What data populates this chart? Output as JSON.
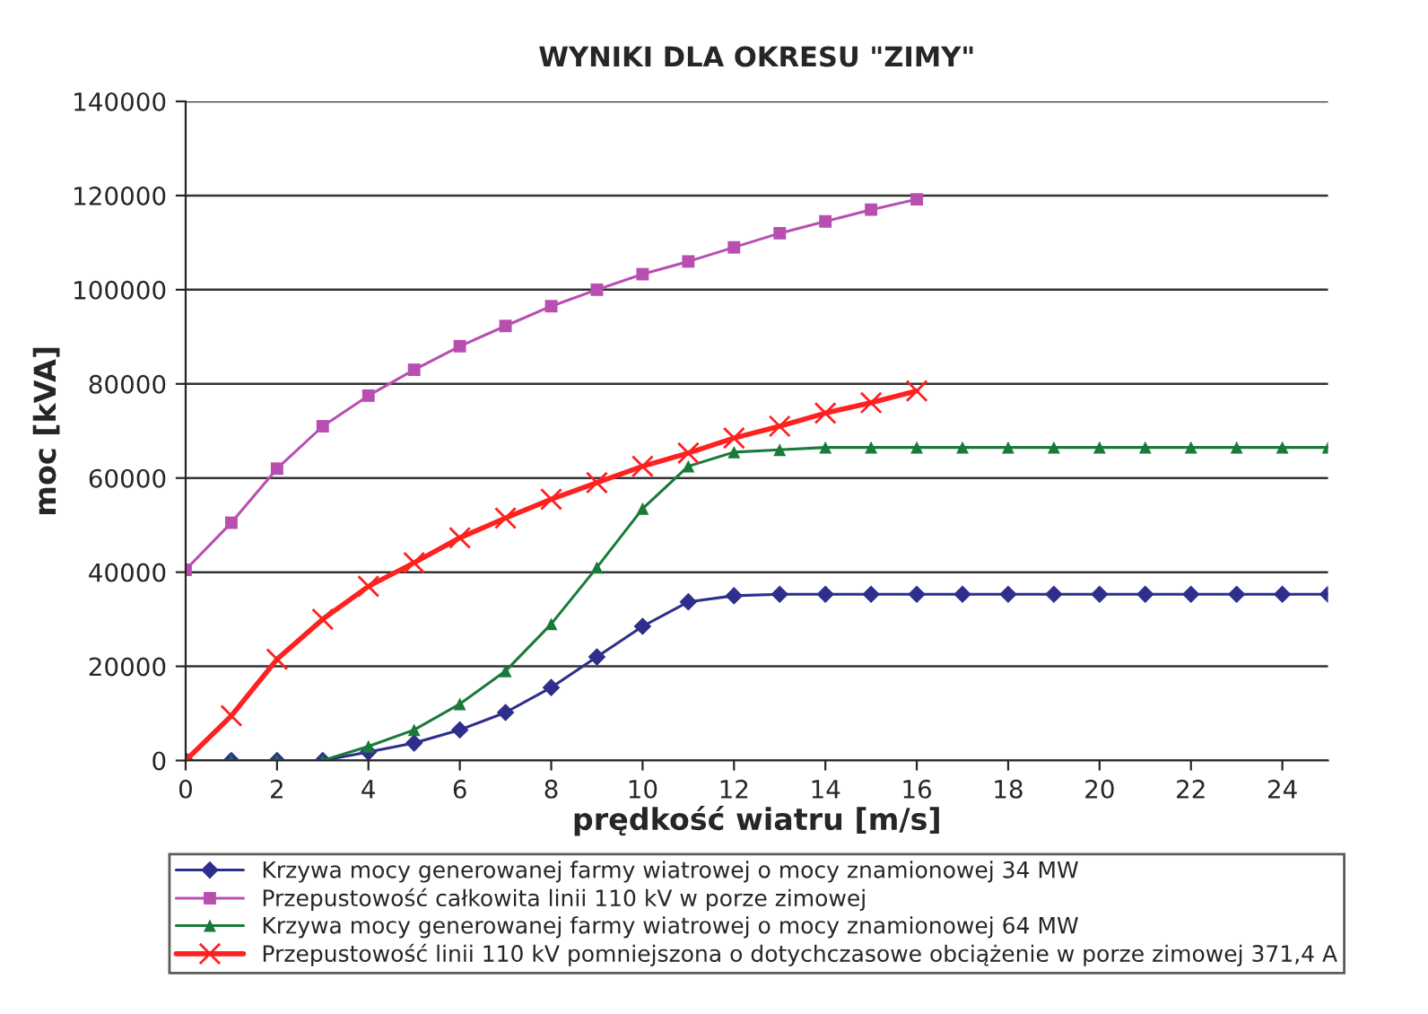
{
  "chart_data": {
    "type": "line",
    "title": "WYNIKI DLA OKRESU \"ZIMY\"",
    "xlabel": "prędkość wiatru [m/s]",
    "ylabel": "moc [kVA]",
    "series": [
      {
        "name": "Krzywa mocy generowanej farmy wiatrowej o mocy znamionowej 34 MW",
        "color": "#2e2e8c",
        "marker": "diamond",
        "x": [
          0,
          1,
          2,
          3,
          4,
          5,
          6,
          7,
          8,
          9,
          10,
          11,
          12,
          13,
          14,
          15,
          16,
          17,
          18,
          19,
          20,
          21,
          22,
          23,
          24,
          25
        ],
        "values": [
          0,
          0,
          0,
          0,
          1800,
          3700,
          6500,
          10200,
          15500,
          22000,
          28500,
          33700,
          35000,
          35300,
          35300,
          35300,
          35300,
          35300,
          35300,
          35300,
          35300,
          35300,
          35300,
          35300,
          35300,
          35300
        ]
      },
      {
        "name": "Przepustowość całkowita linii 110 kV w porze zimowej",
        "color": "#b84fb0",
        "marker": "square",
        "x": [
          0,
          1,
          2,
          3,
          4,
          5,
          6,
          7,
          8,
          9,
          10,
          11,
          12,
          13,
          14,
          15,
          16
        ],
        "values": [
          40500,
          50500,
          62000,
          71000,
          77500,
          83000,
          88000,
          92300,
          96500,
          100000,
          103300,
          106000,
          109000,
          112000,
          114500,
          117000,
          119200
        ]
      },
      {
        "name": "Krzywa mocy generowanej farmy wiatrowej o mocy znamionowej 64 MW",
        "color": "#1a7a3a",
        "marker": "triangle",
        "x": [
          0,
          1,
          2,
          3,
          4,
          5,
          6,
          7,
          8,
          9,
          10,
          11,
          12,
          13,
          14,
          15,
          16,
          17,
          18,
          19,
          20,
          21,
          22,
          23,
          24,
          25
        ],
        "values": [
          0,
          0,
          0,
          0,
          3000,
          6500,
          12000,
          19000,
          29000,
          41000,
          53500,
          62500,
          65500,
          66000,
          66500,
          66500,
          66500,
          66500,
          66500,
          66500,
          66500,
          66500,
          66500,
          66500,
          66500,
          66500
        ]
      },
      {
        "name": "Przepustowość linii 110 kV pomniejszona o dotychczasowe obciążenie w porze zimowej 371,4 A",
        "color": "#ff2020",
        "marker": "cross",
        "x": [
          0,
          1,
          2,
          3,
          4,
          5,
          6,
          7,
          8,
          9,
          10,
          11,
          12,
          13,
          14,
          15,
          16
        ],
        "values": [
          0,
          9500,
          21500,
          30000,
          37000,
          42000,
          47300,
          51500,
          55500,
          59000,
          62500,
          65300,
          68500,
          71000,
          73800,
          76000,
          78500
        ]
      }
    ],
    "xlim": [
      0,
      25
    ],
    "xticks": [
      0,
      2,
      4,
      6,
      8,
      10,
      12,
      14,
      16,
      18,
      20,
      22,
      24
    ],
    "ylim": [
      0,
      140000
    ],
    "yticks": [
      0,
      20000,
      40000,
      60000,
      80000,
      100000,
      120000,
      140000
    ],
    "grid": "y",
    "legend": "bottom",
    "line_style": "solid"
  }
}
